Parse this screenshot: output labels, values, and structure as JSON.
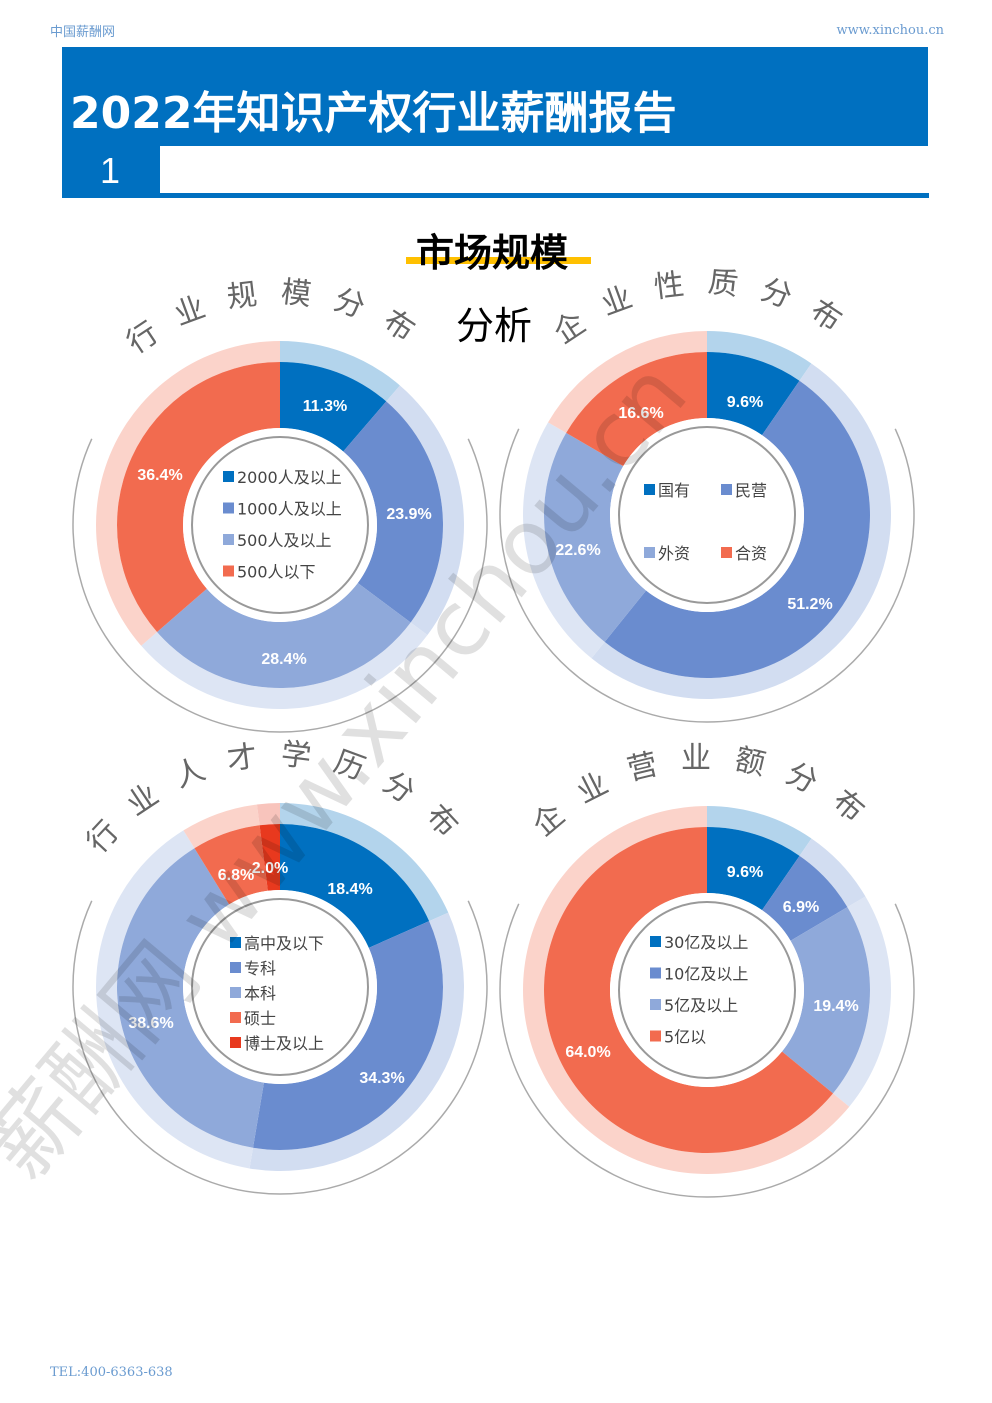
{
  "header": {
    "site_name": "中国薪酬网",
    "site_url": "www.xinchou.cn"
  },
  "banner": {
    "title": "2022年知识产权行业薪酬报告",
    "section_number": "1"
  },
  "section": {
    "title": "市场规模",
    "title_line2": "分析"
  },
  "watermark": {
    "text": "薪酬网 www.xinchou.cn"
  },
  "footer": {
    "tel": "TEL:400-6363-638"
  },
  "colors": {
    "brand": "#0070C0",
    "accent_underline": "#FFC000",
    "dark_blue": "#0070C0",
    "mid_blue": "#6A8CCF",
    "light_blue": "#8FA9DA",
    "orange": "#F26B4F",
    "red": "#E8391E"
  },
  "chart_data": [
    {
      "type": "pie",
      "title": "行业规模分布",
      "legend_placement": "center",
      "categories": [
        "2000人及以上",
        "1000人及以上",
        "500人及以上",
        "500人以下"
      ],
      "values": [
        11.3,
        23.9,
        28.4,
        36.4
      ],
      "labels": [
        "11.3%",
        "23.9%",
        "28.4%",
        "36.4%"
      ],
      "colors": [
        "#0070C0",
        "#6A8CCF",
        "#8FA9DA",
        "#F26B4F"
      ]
    },
    {
      "type": "pie",
      "title": "企业性质分布",
      "legend_placement": "center",
      "categories": [
        "国有",
        "民营",
        "外资",
        "合资"
      ],
      "values": [
        9.6,
        51.2,
        22.6,
        16.6
      ],
      "labels": [
        "9.6%",
        "51.2%",
        "22.6%",
        "16.6%"
      ],
      "colors": [
        "#0070C0",
        "#6A8CCF",
        "#8FA9DA",
        "#F26B4F"
      ]
    },
    {
      "type": "pie",
      "title": "行业人才学历分布",
      "legend_placement": "center",
      "categories": [
        "高中及以下",
        "专科",
        "本科",
        "硕士",
        "博士及以上"
      ],
      "values": [
        18.4,
        34.3,
        38.6,
        6.8,
        2.0
      ],
      "labels": [
        "18.4%",
        "34.3%",
        "38.6%",
        "6.8%",
        "2.0%"
      ],
      "colors": [
        "#0070C0",
        "#6A8CCF",
        "#8FA9DA",
        "#F26B4F",
        "#E8391E"
      ]
    },
    {
      "type": "pie",
      "title": "企业营业额分布",
      "legend_placement": "center",
      "categories": [
        "30亿及以上",
        "10亿及以上",
        "5亿及以上",
        "5亿以"
      ],
      "values": [
        9.6,
        6.9,
        19.4,
        64.0
      ],
      "labels": [
        "9.6%",
        "6.9%",
        "19.4%",
        "64.0%"
      ],
      "colors": [
        "#0070C0",
        "#6A8CCF",
        "#8FA9DA",
        "#F26B4F"
      ]
    }
  ]
}
